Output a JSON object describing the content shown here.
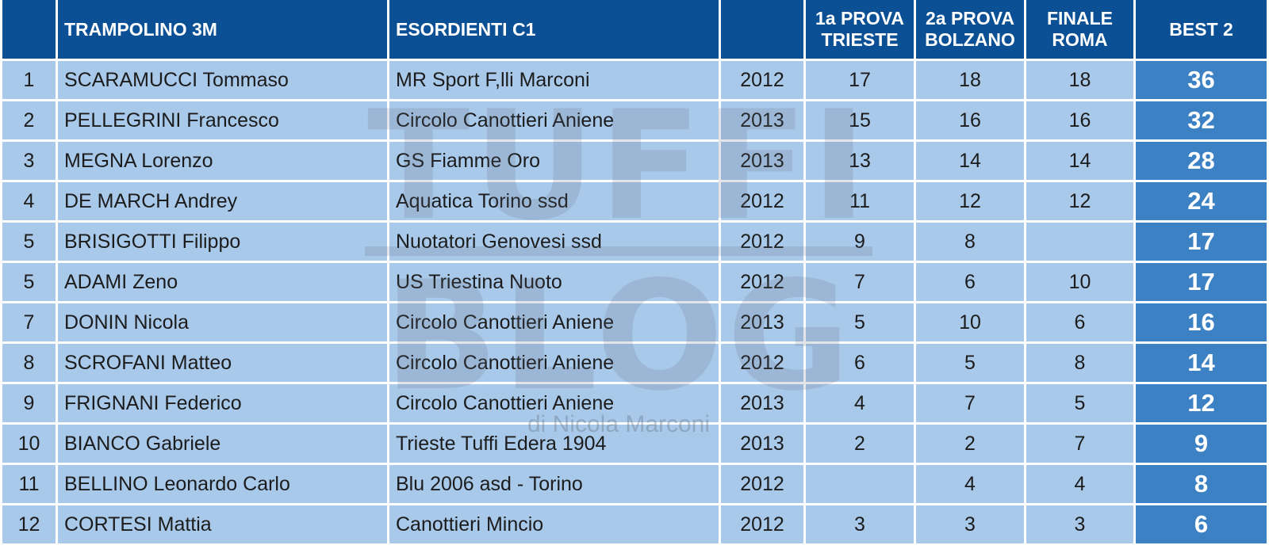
{
  "header": {
    "rank": "",
    "event": "TRAMPOLINO 3M",
    "category": "ESORDIENTI C1",
    "year": "",
    "prova1": "1a PROVA TRIESTE",
    "prova2": "2a PROVA BOLZANO",
    "finale": "FINALE ROMA",
    "best": "BEST 2"
  },
  "rows": [
    {
      "rank": "1",
      "name": "SCARAMUCCI Tommaso",
      "club": "MR Sport F,lli Marconi",
      "year": "2012",
      "p1": "17",
      "p2": "18",
      "fin": "18",
      "best": "36"
    },
    {
      "rank": "2",
      "name": "PELLEGRINI Francesco",
      "club": "Circolo Canottieri Aniene",
      "year": "2013",
      "p1": "15",
      "p2": "16",
      "fin": "16",
      "best": "32"
    },
    {
      "rank": "3",
      "name": "MEGNA Lorenzo",
      "club": "GS Fiamme Oro",
      "year": "2013",
      "p1": "13",
      "p2": "14",
      "fin": "14",
      "best": "28"
    },
    {
      "rank": "4",
      "name": "DE MARCH Andrey",
      "club": "Aquatica Torino ssd",
      "year": "2012",
      "p1": "11",
      "p2": "12",
      "fin": "12",
      "best": "24"
    },
    {
      "rank": "5",
      "name": "BRISIGOTTI Filippo",
      "club": "Nuotatori Genovesi ssd",
      "year": "2012",
      "p1": "9",
      "p2": "8",
      "fin": "",
      "best": "17"
    },
    {
      "rank": "5",
      "name": "ADAMI Zeno",
      "club": "US Triestina Nuoto",
      "year": "2012",
      "p1": "7",
      "p2": "6",
      "fin": "10",
      "best": "17"
    },
    {
      "rank": "7",
      "name": "DONIN Nicola",
      "club": "Circolo Canottieri Aniene",
      "year": "2013",
      "p1": "5",
      "p2": "10",
      "fin": "6",
      "best": "16"
    },
    {
      "rank": "8",
      "name": "SCROFANI Matteo",
      "club": "Circolo Canottieri Aniene",
      "year": "2012",
      "p1": "6",
      "p2": "5",
      "fin": "8",
      "best": "14"
    },
    {
      "rank": "9",
      "name": "FRIGNANI Federico",
      "club": "Circolo Canottieri Aniene",
      "year": "2013",
      "p1": "4",
      "p2": "7",
      "fin": "5",
      "best": "12"
    },
    {
      "rank": "10",
      "name": "BIANCO Gabriele",
      "club": "Trieste Tuffi Edera 1904",
      "year": "2013",
      "p1": "2",
      "p2": "2",
      "fin": "7",
      "best": "9"
    },
    {
      "rank": "11",
      "name": "BELLINO Leonardo Carlo",
      "club": "Blu 2006 asd - Torino",
      "year": "2012",
      "p1": "",
      "p2": "4",
      "fin": "4",
      "best": "8"
    },
    {
      "rank": "12",
      "name": "CORTESI Mattia",
      "club": "Canottieri Mincio",
      "year": "2012",
      "p1": "3",
      "p2": "3",
      "fin": "3",
      "best": "6"
    }
  ],
  "watermark": {
    "line1": "TUFFI",
    "line2": "BLOG",
    "byline": "di Nicola Marconi"
  },
  "colors": {
    "header_bg": "#0b5094",
    "row_bg": "#a9c9ea",
    "best_bg": "#3c81c4"
  }
}
